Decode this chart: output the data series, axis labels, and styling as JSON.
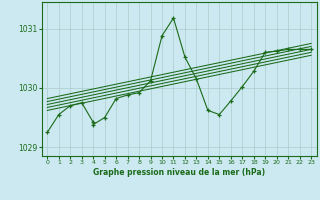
{
  "title": "Graphe pression niveau de la mer (hPa)",
  "bg_color": "#cce8f0",
  "grid_color": "#aacccc",
  "line_color": "#1a6b1a",
  "xlim": [
    -0.5,
    23.5
  ],
  "ylim": [
    1028.85,
    1031.45
  ],
  "yticks": [
    1029,
    1030,
    1031
  ],
  "xticks": [
    0,
    1,
    2,
    3,
    4,
    5,
    6,
    7,
    8,
    9,
    10,
    11,
    12,
    13,
    14,
    15,
    16,
    17,
    18,
    19,
    20,
    21,
    22,
    23
  ],
  "x_data": [
    0,
    1,
    2,
    3,
    4,
    4,
    5,
    6,
    7,
    8,
    9,
    10,
    11,
    12,
    13,
    14,
    15,
    16,
    17,
    18,
    19,
    20,
    21,
    22,
    23
  ],
  "y_data": [
    1029.25,
    1029.55,
    1029.7,
    1029.75,
    1029.42,
    1029.38,
    1029.5,
    1029.82,
    1029.88,
    1029.92,
    1030.12,
    1030.88,
    1031.18,
    1030.52,
    1030.15,
    1029.62,
    1029.55,
    1029.78,
    1030.02,
    1030.28,
    1030.6,
    1030.62,
    1030.65,
    1030.65,
    1030.65
  ],
  "band_lines": [
    {
      "x0": 0,
      "y0": 1029.62,
      "x1": 23,
      "y1": 1030.55
    },
    {
      "x0": 0,
      "y0": 1029.67,
      "x1": 23,
      "y1": 1030.6
    },
    {
      "x0": 0,
      "y0": 1029.72,
      "x1": 23,
      "y1": 1030.65
    },
    {
      "x0": 0,
      "y0": 1029.77,
      "x1": 23,
      "y1": 1030.7
    },
    {
      "x0": 0,
      "y0": 1029.82,
      "x1": 23,
      "y1": 1030.75
    }
  ]
}
